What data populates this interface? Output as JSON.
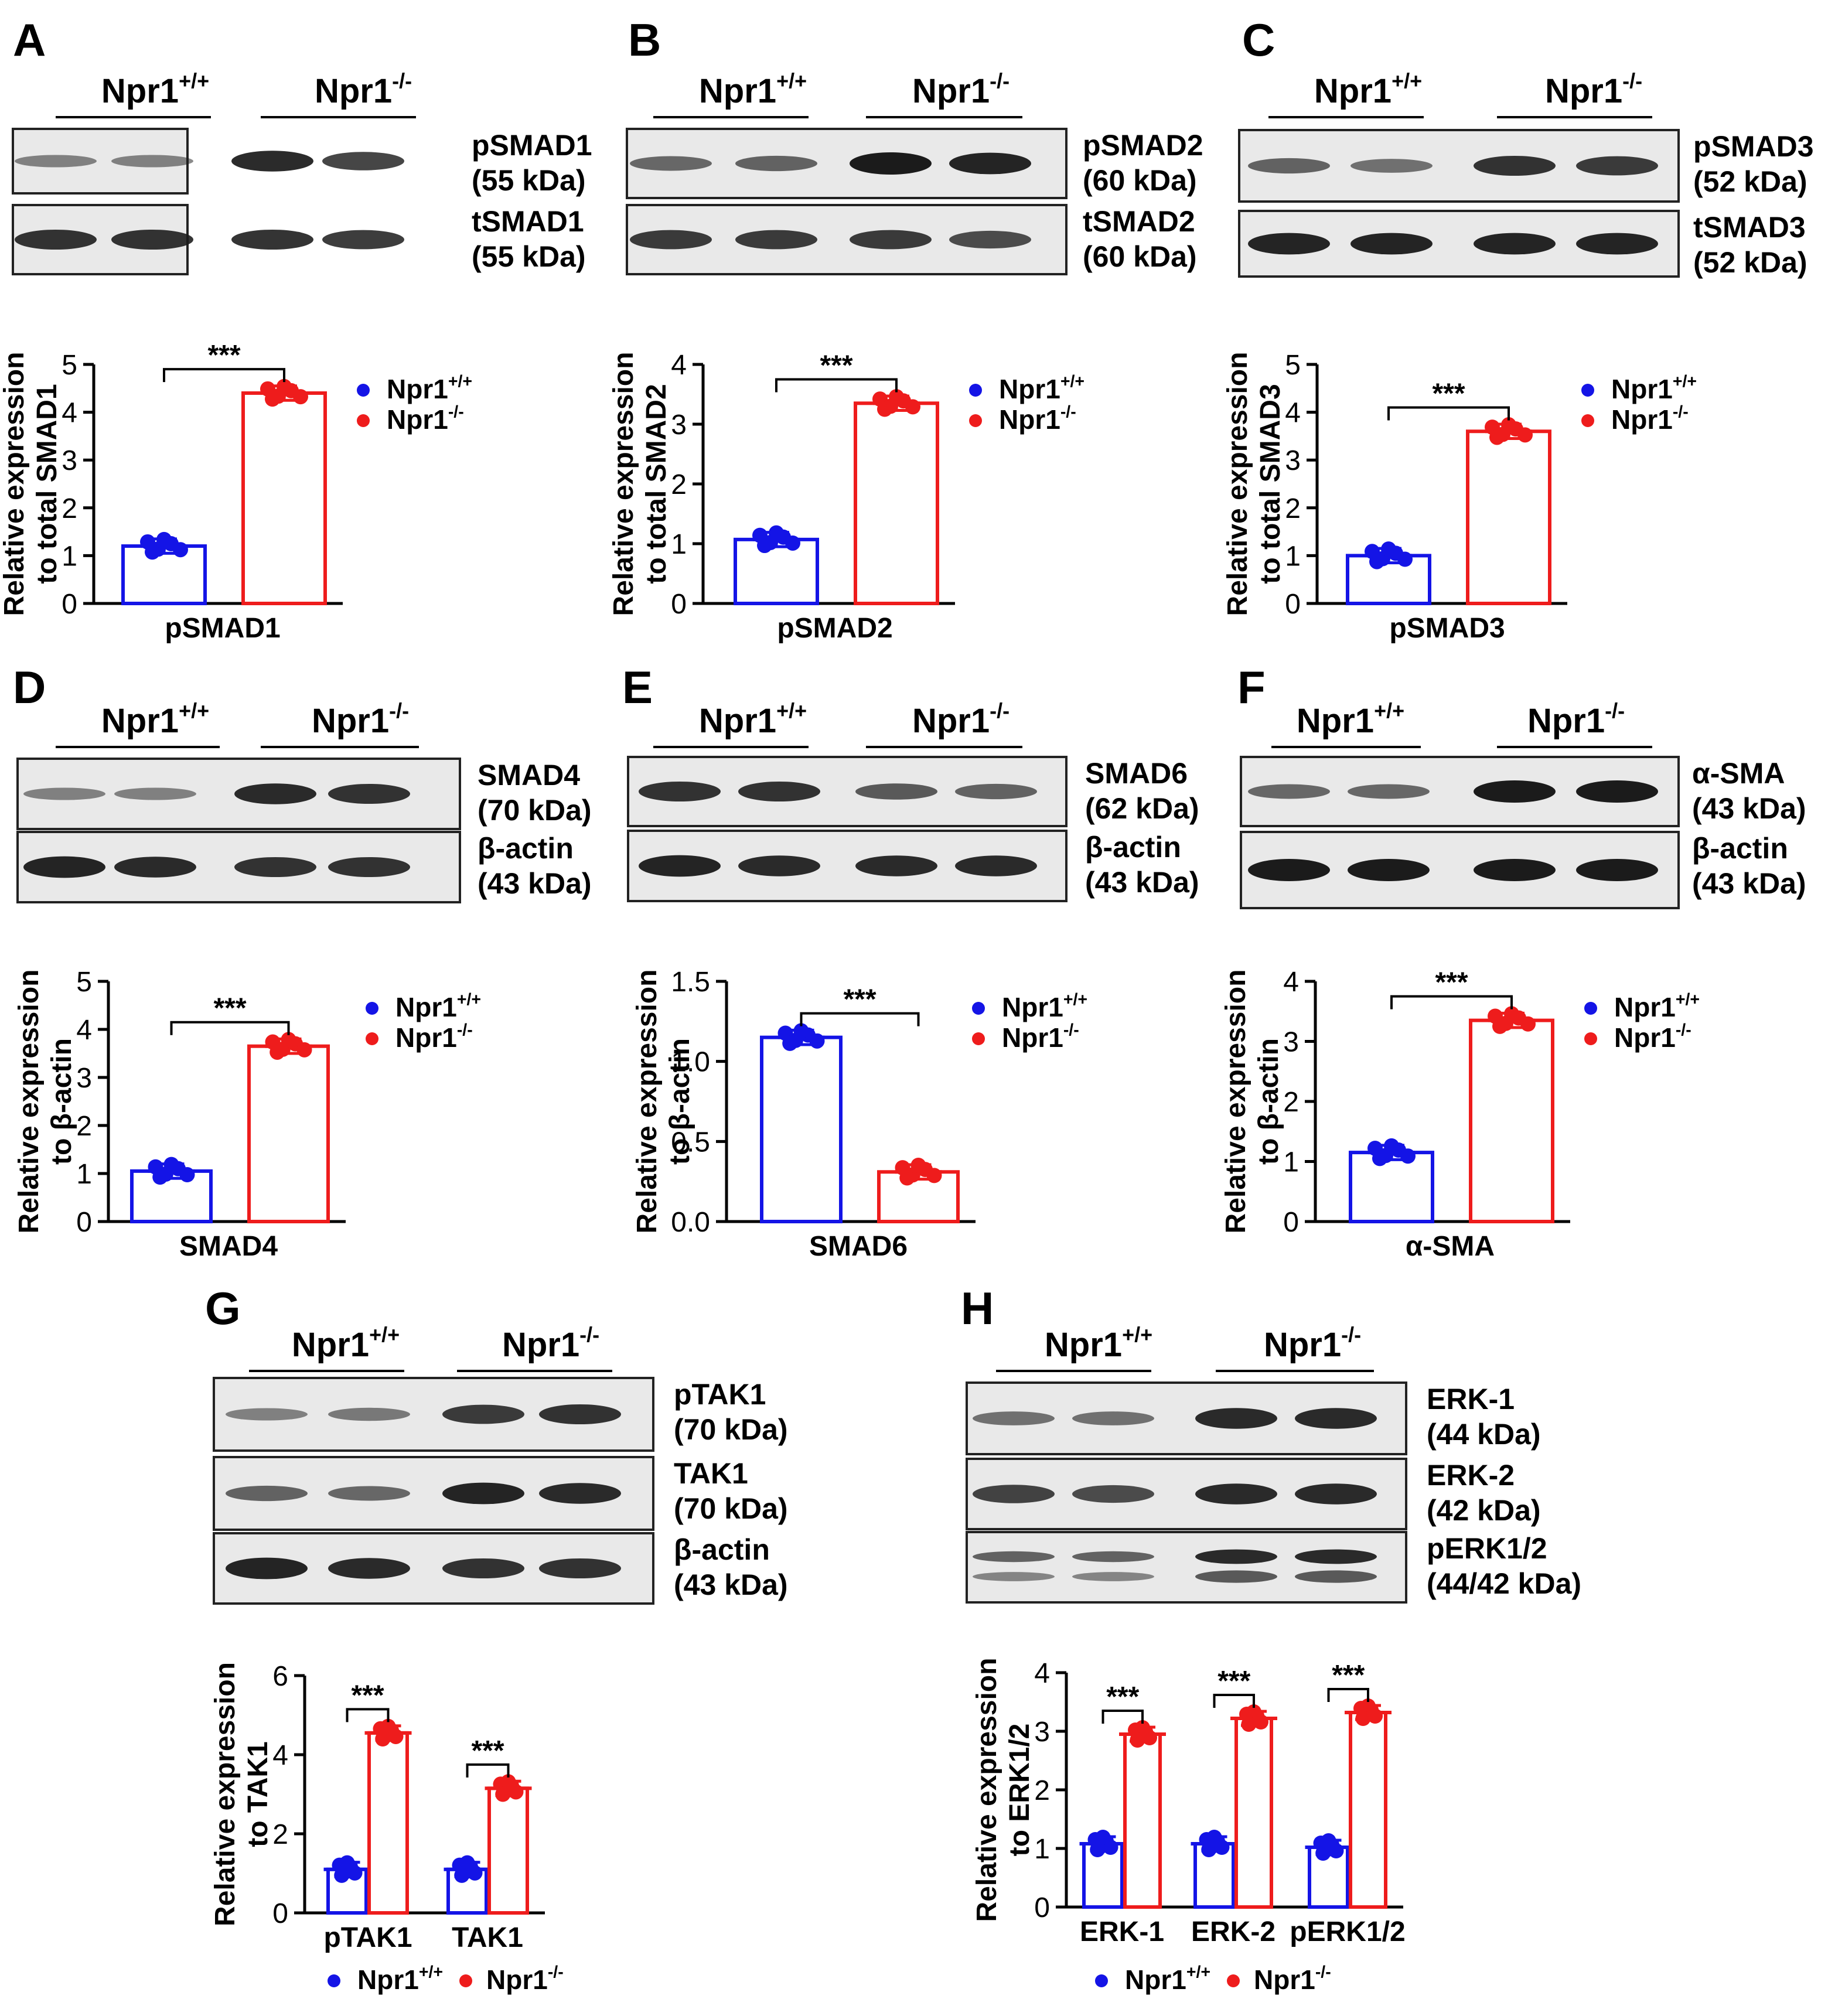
{
  "legend": {
    "wt": "Npr1",
    "wt_sup": "+/+",
    "ko": "Npr1",
    "ko_sup": "-/-"
  },
  "colors": {
    "wt": "#1414e6",
    "ko": "#ee1c1c",
    "blot_bg": "#e9e9e9",
    "band": "#1b1b1b"
  },
  "significance": "***",
  "blots": [
    {
      "panel": "A",
      "groups": [
        "Npr1",
        "Npr1"
      ],
      "rows": [
        {
          "labels": [
            "pSMAD1",
            "(55 kDa)"
          ],
          "intensity": [
            0.35,
            0.35,
            0.9,
            0.75
          ]
        },
        {
          "labels": [
            "tSMAD1",
            "(55 kDa)"
          ],
          "intensity": [
            0.85,
            0.85,
            0.85,
            0.8
          ]
        }
      ]
    },
    {
      "panel": "B",
      "groups": [
        "Npr1",
        "Npr1"
      ],
      "rows": [
        {
          "labels": [
            "pSMAD2",
            "(60 kDa)"
          ],
          "intensity": [
            0.5,
            0.55,
            1.0,
            0.95
          ]
        },
        {
          "labels": [
            "tSMAD2",
            "(60 kDa)"
          ],
          "intensity": [
            0.8,
            0.8,
            0.8,
            0.7
          ]
        }
      ]
    },
    {
      "panel": "C",
      "groups": [
        "Npr1",
        "Npr1"
      ],
      "rows": [
        {
          "labels": [
            "pSMAD3",
            "(52 kDa)"
          ],
          "intensity": [
            0.55,
            0.45,
            0.85,
            0.8
          ]
        },
        {
          "labels": [
            "tSMAD3",
            "(52 kDa)"
          ],
          "intensity": [
            0.95,
            0.95,
            0.95,
            0.95
          ]
        }
      ]
    },
    {
      "panel": "D",
      "groups": [
        "Npr1",
        "Npr1"
      ],
      "rows": [
        {
          "labels": [
            "SMAD4",
            "(70 kDa)"
          ],
          "intensity": [
            0.35,
            0.35,
            0.9,
            0.85
          ]
        },
        {
          "labels": [
            "β-actin",
            "(43 kDa)"
          ],
          "intensity": [
            0.95,
            0.9,
            0.85,
            0.85
          ]
        }
      ]
    },
    {
      "panel": "E",
      "groups": [
        "Npr1",
        "Npr1"
      ],
      "rows": [
        {
          "labels": [
            "SMAD6",
            "(62 kDa)"
          ],
          "intensity": [
            0.85,
            0.85,
            0.6,
            0.55
          ]
        },
        {
          "labels": [
            "β-actin",
            "(43 kDa)"
          ],
          "intensity": [
            0.95,
            0.9,
            0.9,
            0.9
          ]
        }
      ]
    },
    {
      "panel": "F",
      "groups": [
        "Npr1",
        "Npr1"
      ],
      "rows": [
        {
          "labels": [
            "α-SMA",
            "(43 kDa)"
          ],
          "intensity": [
            0.5,
            0.5,
            1.0,
            1.0
          ]
        },
        {
          "labels": [
            "β-actin",
            "(43 kDa)"
          ],
          "intensity": [
            1.0,
            1.0,
            1.0,
            1.0
          ]
        }
      ]
    },
    {
      "panel": "G",
      "groups": [
        "Npr1",
        "Npr1"
      ],
      "rows": [
        {
          "labels": [
            "pTAK1",
            "(70 kDa)"
          ],
          "intensity": [
            0.35,
            0.4,
            0.8,
            0.85
          ]
        },
        {
          "labels": [
            "TAK1",
            "(70 kDa)"
          ],
          "intensity": [
            0.55,
            0.5,
            0.95,
            0.9
          ]
        },
        {
          "labels": [
            "β-actin",
            "(43 kDa)"
          ],
          "intensity": [
            0.95,
            0.9,
            0.85,
            0.85
          ]
        }
      ]
    },
    {
      "panel": "H",
      "groups": [
        "Npr1",
        "Npr1"
      ],
      "rows": [
        {
          "labels": [
            "ERK-1",
            "(44 kDa)"
          ],
          "intensity": [
            0.45,
            0.45,
            0.9,
            0.9
          ]
        },
        {
          "labels": [
            "ERK-2",
            "(42 kDa)"
          ],
          "intensity": [
            0.75,
            0.7,
            0.9,
            0.9
          ]
        },
        {
          "labels": [
            "pERK1/2",
            "(44/42 kDa)"
          ],
          "intensity": [
            0.55,
            0.55,
            0.9,
            0.9
          ],
          "double": true
        }
      ]
    }
  ],
  "chart_data": [
    {
      "panel": "A",
      "type": "bar",
      "ylabel": [
        "Relative expression",
        "to total SMAD1"
      ],
      "ylim": [
        0,
        5
      ],
      "yticks": [
        "0",
        "1",
        "2",
        "3",
        "4",
        "5"
      ],
      "categories": [
        "pSMAD1"
      ],
      "series": [
        {
          "name": "Npr1+/+",
          "values": [
            1.2
          ]
        },
        {
          "name": "Npr1-/-",
          "values": [
            4.4
          ]
        }
      ]
    },
    {
      "panel": "B",
      "type": "bar",
      "ylabel": [
        "Relative expression",
        "to total SMAD2"
      ],
      "ylim": [
        0,
        4
      ],
      "yticks": [
        "0",
        "1",
        "2",
        "3",
        "4"
      ],
      "categories": [
        "pSMAD2"
      ],
      "series": [
        {
          "name": "Npr1+/+",
          "values": [
            1.07
          ]
        },
        {
          "name": "Npr1-/-",
          "values": [
            3.35
          ]
        }
      ]
    },
    {
      "panel": "C",
      "type": "bar",
      "ylabel": [
        "Relative expression",
        "to total SMAD3"
      ],
      "ylim": [
        0,
        5
      ],
      "yticks": [
        "0",
        "1",
        "2",
        "3",
        "4",
        "5"
      ],
      "categories": [
        "pSMAD3"
      ],
      "series": [
        {
          "name": "Npr1+/+",
          "values": [
            1.0
          ]
        },
        {
          "name": "Npr1-/-",
          "values": [
            3.6
          ]
        }
      ]
    },
    {
      "panel": "D",
      "type": "bar",
      "ylabel": [
        "Relative expression",
        "to β-actin"
      ],
      "ylim": [
        0,
        5
      ],
      "yticks": [
        "0",
        "1",
        "2",
        "3",
        "4",
        "5"
      ],
      "categories": [
        "SMAD4"
      ],
      "series": [
        {
          "name": "Npr1+/+",
          "values": [
            1.05
          ]
        },
        {
          "name": "Npr1-/-",
          "values": [
            3.65
          ]
        }
      ]
    },
    {
      "panel": "E",
      "type": "bar",
      "ylabel": [
        "Relative expression",
        "to β-actin"
      ],
      "ylim": [
        0,
        1.5
      ],
      "yticks": [
        "0.0",
        "0.5",
        "1.0",
        "1.5"
      ],
      "categories": [
        "SMAD6"
      ],
      "series": [
        {
          "name": "Npr1+/+",
          "values": [
            1.15
          ]
        },
        {
          "name": "Npr1-/-",
          "values": [
            0.31
          ]
        }
      ]
    },
    {
      "panel": "F",
      "type": "bar",
      "ylabel": [
        "Relative expression",
        "to β-actin"
      ],
      "ylim": [
        0,
        4
      ],
      "yticks": [
        "0",
        "1",
        "2",
        "3",
        "4"
      ],
      "categories": [
        "α-SMA"
      ],
      "series": [
        {
          "name": "Npr1+/+",
          "values": [
            1.15
          ]
        },
        {
          "name": "Npr1-/-",
          "values": [
            3.35
          ]
        }
      ]
    },
    {
      "panel": "G",
      "type": "bar",
      "ylabel": [
        "Relative expression",
        "to TAK1"
      ],
      "ylim": [
        0,
        6
      ],
      "yticks": [
        "0",
        "2",
        "4",
        "6"
      ],
      "categories": [
        "pTAK1",
        "TAK1"
      ],
      "series": [
        {
          "name": "Npr1+/+",
          "values": [
            1.1,
            1.1
          ]
        },
        {
          "name": "Npr1-/-",
          "values": [
            4.55,
            3.15
          ]
        }
      ]
    },
    {
      "panel": "H",
      "type": "bar",
      "ylabel": [
        "Relative expression",
        "to ERK1/2"
      ],
      "ylim": [
        0,
        4
      ],
      "yticks": [
        "0",
        "1",
        "2",
        "3",
        "4"
      ],
      "categories": [
        "ERK-1",
        "ERK-2",
        "pERK1/2"
      ],
      "series": [
        {
          "name": "Npr1+/+",
          "values": [
            1.08,
            1.08,
            1.02
          ]
        },
        {
          "name": "Npr1-/-",
          "values": [
            2.95,
            3.22,
            3.32
          ]
        }
      ]
    }
  ]
}
